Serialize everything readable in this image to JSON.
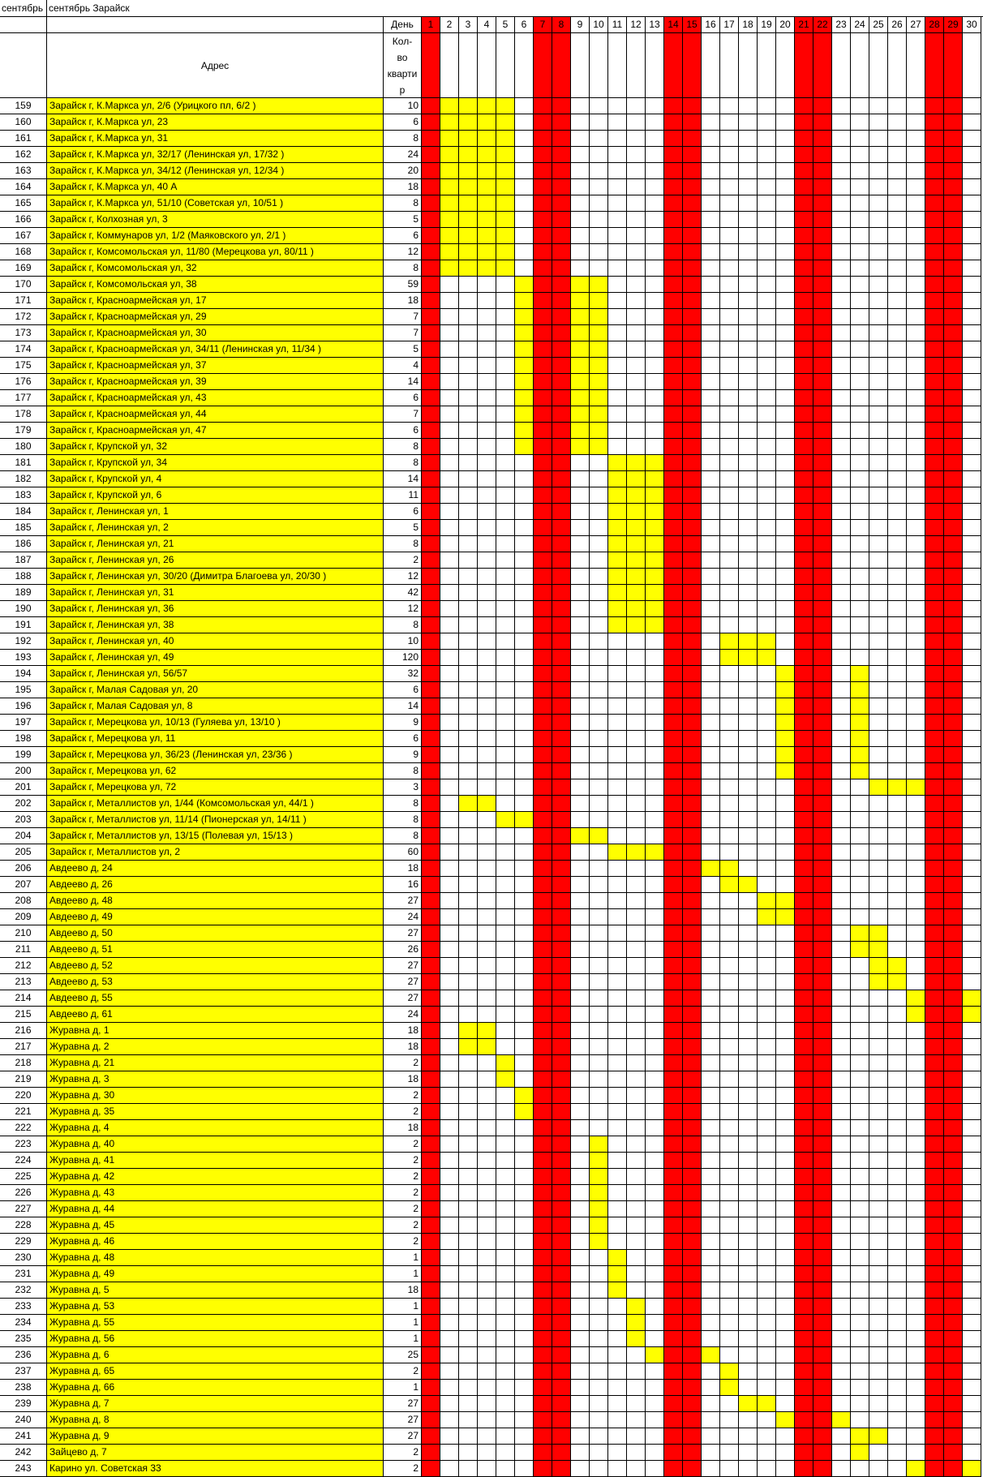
{
  "sheet": {
    "title_a": "сентябрь",
    "title_b": "сентябрь Зарайск",
    "header_day": "День",
    "header_address": "Адрес",
    "header_qty_lines": [
      "Кол-",
      "во",
      "кварти",
      "р"
    ],
    "days": [
      "1",
      "2",
      "3",
      "4",
      "5",
      "6",
      "7",
      "8",
      "9",
      "10",
      "11",
      "12",
      "13",
      "14",
      "15",
      "16",
      "17",
      "18",
      "19",
      "20",
      "21",
      "22",
      "23",
      "24",
      "25",
      "26",
      "27",
      "28",
      "29",
      "30"
    ],
    "weekend_days": [
      1,
      7,
      8,
      14,
      15,
      21,
      22,
      28,
      29
    ],
    "colors": {
      "weekend": "#ff0000",
      "highlight": "#ffff00",
      "grid": "#000000"
    },
    "rows": [
      {
        "n": "159",
        "addr": "Зарайск г, К.Маркса ул, 2/6 (Урицкого пл, 6/2  )",
        "qty": "10",
        "days": [
          2,
          3,
          4,
          5
        ]
      },
      {
        "n": "160",
        "addr": "Зарайск г, К.Маркса ул, 23",
        "qty": "6",
        "days": [
          2,
          3,
          4,
          5
        ]
      },
      {
        "n": "161",
        "addr": "Зарайск г, К.Маркса ул, 31",
        "qty": "8",
        "days": [
          2,
          3,
          4,
          5
        ]
      },
      {
        "n": "162",
        "addr": "Зарайск г, К.Маркса ул, 32/17 (Ленинская ул, 17/32  )",
        "qty": "24",
        "days": [
          2,
          3,
          4,
          5
        ]
      },
      {
        "n": "163",
        "addr": "Зарайск г, К.Маркса ул, 34/12 (Ленинская ул, 12/34  )",
        "qty": "20",
        "days": [
          2,
          3,
          4,
          5
        ]
      },
      {
        "n": "164",
        "addr": "Зарайск г, К.Маркса ул, 40 А",
        "qty": "18",
        "days": [
          2,
          3,
          4,
          5
        ]
      },
      {
        "n": "165",
        "addr": "Зарайск г, К.Маркса ул, 51/10 (Советская ул, 10/51  )",
        "qty": "8",
        "days": [
          2,
          3,
          4,
          5
        ]
      },
      {
        "n": "166",
        "addr": "Зарайск г, Колхозная ул, 3",
        "qty": "5",
        "days": [
          2,
          3,
          4,
          5
        ]
      },
      {
        "n": "167",
        "addr": "Зарайск г, Коммунаров ул, 1/2 (Маяковского ул, 2/1  )",
        "qty": "6",
        "days": [
          2,
          3,
          4,
          5
        ]
      },
      {
        "n": "168",
        "addr": "Зарайск г, Комсомольская ул, 11/80 (Мерецкова ул, 80/11  )",
        "qty": "12",
        "days": [
          2,
          3,
          4,
          5
        ]
      },
      {
        "n": "169",
        "addr": "Зарайск г, Комсомольская ул, 32",
        "qty": "8",
        "days": [
          2,
          3,
          4,
          5
        ]
      },
      {
        "n": "170",
        "addr": "Зарайск г, Комсомольская ул, 38",
        "qty": "59",
        "days": [
          6,
          9,
          10
        ]
      },
      {
        "n": "171",
        "addr": "Зарайск г, Красноармейская ул, 17",
        "qty": "18",
        "days": [
          6,
          9,
          10
        ]
      },
      {
        "n": "172",
        "addr": "Зарайск г, Красноармейская ул, 29",
        "qty": "7",
        "days": [
          6,
          9,
          10
        ]
      },
      {
        "n": "173",
        "addr": "Зарайск г, Красноармейская ул, 30",
        "qty": "7",
        "days": [
          6,
          9,
          10
        ]
      },
      {
        "n": "174",
        "addr": "Зарайск г, Красноармейская ул, 34/11 (Ленинская ул, 11/34  )",
        "qty": "5",
        "days": [
          6,
          9,
          10
        ]
      },
      {
        "n": "175",
        "addr": "Зарайск г, Красноармейская ул, 37",
        "qty": "4",
        "days": [
          6,
          9,
          10
        ]
      },
      {
        "n": "176",
        "addr": "Зарайск г, Красноармейская ул, 39",
        "qty": "14",
        "days": [
          6,
          9,
          10
        ]
      },
      {
        "n": "177",
        "addr": "Зарайск г, Красноармейская ул, 43",
        "qty": "6",
        "days": [
          6,
          9,
          10
        ]
      },
      {
        "n": "178",
        "addr": "Зарайск г, Красноармейская ул, 44",
        "qty": "7",
        "days": [
          6,
          9,
          10
        ]
      },
      {
        "n": "179",
        "addr": "Зарайск г, Красноармейская ул, 47",
        "qty": "6",
        "days": [
          6,
          9,
          10
        ]
      },
      {
        "n": "180",
        "addr": "Зарайск г, Крупской ул, 32",
        "qty": "8",
        "days": [
          6,
          9,
          10
        ]
      },
      {
        "n": "181",
        "addr": "Зарайск г, Крупской ул, 34",
        "qty": "8",
        "days": [
          11,
          12,
          13
        ]
      },
      {
        "n": "182",
        "addr": "Зарайск г, Крупской ул, 4",
        "qty": "14",
        "days": [
          11,
          12,
          13
        ]
      },
      {
        "n": "183",
        "addr": "Зарайск г, Крупской ул, 6",
        "qty": "11",
        "days": [
          11,
          12,
          13
        ]
      },
      {
        "n": "184",
        "addr": "Зарайск г, Ленинская ул, 1",
        "qty": "6",
        "days": [
          11,
          12,
          13
        ]
      },
      {
        "n": "185",
        "addr": "Зарайск г, Ленинская ул, 2",
        "qty": "5",
        "days": [
          11,
          12,
          13
        ]
      },
      {
        "n": "186",
        "addr": "Зарайск г, Ленинская ул, 21",
        "qty": "8",
        "days": [
          11,
          12,
          13
        ]
      },
      {
        "n": "187",
        "addr": "Зарайск г, Ленинская ул, 26",
        "qty": "2",
        "days": [
          11,
          12,
          13
        ]
      },
      {
        "n": "188",
        "addr": "Зарайск г, Ленинская ул, 30/20 (Димитра Благоева ул, 20/30  )",
        "qty": "12",
        "days": [
          11,
          12,
          13
        ]
      },
      {
        "n": "189",
        "addr": "Зарайск г, Ленинская ул, 31",
        "qty": "42",
        "days": [
          11,
          12,
          13
        ]
      },
      {
        "n": "190",
        "addr": "Зарайск г, Ленинская ул, 36",
        "qty": "12",
        "days": [
          11,
          12,
          13
        ]
      },
      {
        "n": "191",
        "addr": "Зарайск г, Ленинская ул, 38",
        "qty": "8",
        "days": [
          11,
          12,
          13
        ]
      },
      {
        "n": "192",
        "addr": "Зарайск г, Ленинская ул, 40",
        "qty": "10",
        "days": [
          17,
          18,
          19
        ]
      },
      {
        "n": "193",
        "addr": "Зарайск г, Ленинская ул, 49",
        "qty": "120",
        "days": [
          17,
          18,
          19
        ]
      },
      {
        "n": "194",
        "addr": "Зарайск г, Ленинская ул, 56/57",
        "qty": "32",
        "days": [
          20,
          24
        ]
      },
      {
        "n": "195",
        "addr": "Зарайск г, Малая Садовая ул, 20",
        "qty": "6",
        "days": [
          20,
          24
        ]
      },
      {
        "n": "196",
        "addr": "Зарайск г, Малая Садовая ул, 8",
        "qty": "14",
        "days": [
          20,
          24
        ]
      },
      {
        "n": "197",
        "addr": "Зарайск г, Мерецкова ул, 10/13 (Гуляева ул, 13/10  )",
        "qty": "9",
        "days": [
          20,
          24
        ]
      },
      {
        "n": "198",
        "addr": "Зарайск г, Мерецкова ул, 11",
        "qty": "6",
        "days": [
          20,
          24
        ]
      },
      {
        "n": "199",
        "addr": "Зарайск г, Мерецкова ул, 36/23 (Ленинская ул, 23/36  )",
        "qty": "9",
        "days": [
          20,
          24
        ]
      },
      {
        "n": "200",
        "addr": "Зарайск г, Мерецкова ул, 62",
        "qty": "8",
        "days": [
          20,
          24
        ]
      },
      {
        "n": "201",
        "addr": "Зарайск г, Мерецкова ул, 72",
        "qty": "3",
        "days": [
          25,
          26,
          27
        ]
      },
      {
        "n": "202",
        "addr": "Зарайск г, Металлистов ул, 1/44 (Комсомольская ул, 44/1  )",
        "qty": "8",
        "days": [
          3,
          4
        ]
      },
      {
        "n": "203",
        "addr": "Зарайск г, Металлистов ул, 11/14 (Пионерская ул, 14/11  )",
        "qty": "8",
        "days": [
          5,
          6
        ]
      },
      {
        "n": "204",
        "addr": "Зарайск г, Металлистов ул, 13/15 (Полевая ул, 15/13  )",
        "qty": "8",
        "days": [
          9,
          10
        ]
      },
      {
        "n": "205",
        "addr": "Зарайск г, Металлистов ул, 2",
        "qty": "60",
        "days": [
          11,
          12,
          13
        ]
      },
      {
        "n": "206",
        "addr": "Авдеево д, 24",
        "qty": "18",
        "days": [
          16,
          17
        ]
      },
      {
        "n": "207",
        "addr": "Авдеево д, 26",
        "qty": "16",
        "days": [
          17,
          18
        ]
      },
      {
        "n": "208",
        "addr": "Авдеево д, 48",
        "qty": "27",
        "days": [
          19,
          20
        ]
      },
      {
        "n": "209",
        "addr": "Авдеево д, 49",
        "qty": "24",
        "days": [
          19,
          20
        ]
      },
      {
        "n": "210",
        "addr": "Авдеево д, 50",
        "qty": "27",
        "days": [
          24,
          25
        ]
      },
      {
        "n": "211",
        "addr": "Авдеево д, 51",
        "qty": "26",
        "days": [
          24,
          25
        ]
      },
      {
        "n": "212",
        "addr": "Авдеево д, 52",
        "qty": "27",
        "days": [
          25,
          26
        ]
      },
      {
        "n": "213",
        "addr": "Авдеево д, 53",
        "qty": "27",
        "days": [
          25,
          26
        ]
      },
      {
        "n": "214",
        "addr": "Авдеево д, 55",
        "qty": "27",
        "days": [
          27,
          30
        ]
      },
      {
        "n": "215",
        "addr": "Авдеево д, 61",
        "qty": "24",
        "days": [
          27,
          30
        ]
      },
      {
        "n": "216",
        "addr": "Журавна д, 1",
        "qty": "18",
        "days": [
          3,
          4
        ]
      },
      {
        "n": "217",
        "addr": "Журавна д, 2",
        "qty": "18",
        "days": [
          3,
          4
        ]
      },
      {
        "n": "218",
        "addr": "Журавна д, 21",
        "qty": "2",
        "days": [
          5
        ]
      },
      {
        "n": "219",
        "addr": "Журавна д, 3",
        "qty": "18",
        "days": [
          5
        ]
      },
      {
        "n": "220",
        "addr": "Журавна д, 30",
        "qty": "2",
        "days": [
          6
        ]
      },
      {
        "n": "221",
        "addr": "Журавна д, 35",
        "qty": "2",
        "days": [
          6
        ]
      },
      {
        "n": "222",
        "addr": "Журавна д, 4",
        "qty": "18",
        "days": []
      },
      {
        "n": "223",
        "addr": "Журавна д, 40",
        "qty": "2",
        "days": [
          10
        ]
      },
      {
        "n": "224",
        "addr": "Журавна д, 41",
        "qty": "2",
        "days": [
          10
        ]
      },
      {
        "n": "225",
        "addr": "Журавна д, 42",
        "qty": "2",
        "days": [
          10
        ]
      },
      {
        "n": "226",
        "addr": "Журавна д, 43",
        "qty": "2",
        "days": [
          10
        ]
      },
      {
        "n": "227",
        "addr": "Журавна д, 44",
        "qty": "2",
        "days": [
          10
        ]
      },
      {
        "n": "228",
        "addr": "Журавна д, 45",
        "qty": "2",
        "days": [
          10
        ]
      },
      {
        "n": "229",
        "addr": "Журавна д, 46",
        "qty": "2",
        "days": [
          10
        ]
      },
      {
        "n": "230",
        "addr": "Журавна д, 48",
        "qty": "1",
        "days": [
          11
        ]
      },
      {
        "n": "231",
        "addr": "Журавна д, 49",
        "qty": "1",
        "days": [
          11
        ]
      },
      {
        "n": "232",
        "addr": "Журавна д, 5",
        "qty": "18",
        "days": [
          11
        ]
      },
      {
        "n": "233",
        "addr": "Журавна д, 53",
        "qty": "1",
        "days": [
          12
        ]
      },
      {
        "n": "234",
        "addr": "Журавна д, 55",
        "qty": "1",
        "days": [
          12
        ]
      },
      {
        "n": "235",
        "addr": "Журавна д, 56",
        "qty": "1",
        "days": [
          12
        ]
      },
      {
        "n": "236",
        "addr": "Журавна д, 6",
        "qty": "25",
        "days": [
          13,
          16
        ]
      },
      {
        "n": "237",
        "addr": "Журавна д, 65",
        "qty": "2",
        "days": [
          17
        ]
      },
      {
        "n": "238",
        "addr": "Журавна д, 66",
        "qty": "1",
        "days": [
          17
        ]
      },
      {
        "n": "239",
        "addr": "Журавна д, 7",
        "qty": "27",
        "days": [
          18,
          19
        ]
      },
      {
        "n": "240",
        "addr": "Журавна д, 8",
        "qty": "27",
        "days": [
          20,
          23
        ]
      },
      {
        "n": "241",
        "addr": "Журавна д, 9",
        "qty": "27",
        "days": [
          24,
          25
        ]
      },
      {
        "n": "242",
        "addr": "Зайцево д, 7",
        "qty": "2",
        "days": [
          24
        ]
      },
      {
        "n": "243",
        "addr": "Карино ул. Советская 33",
        "qty": "2",
        "days": [
          27,
          30
        ]
      }
    ]
  }
}
